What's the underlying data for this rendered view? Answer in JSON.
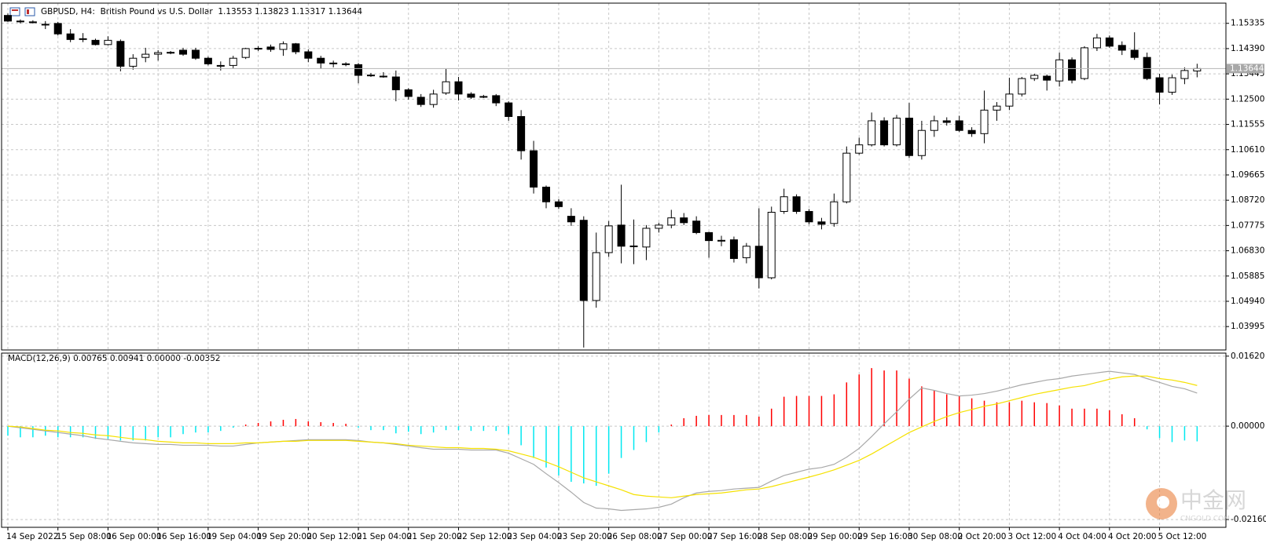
{
  "chart_data": [
    {
      "type": "candlestick",
      "title": "GBPUSD, H4:  British Pound vs U.S. Dollar  1.13553 1.13823 1.13317 1.13644",
      "categories": [
        "14 Sep 2022",
        null,
        null,
        null,
        "15 Sep 08:00",
        null,
        null,
        null,
        "16 Sep 00:00",
        null,
        null,
        null,
        "16 Sep 16:00",
        null,
        null,
        null,
        "19 Sep 04:00",
        null,
        null,
        null,
        "19 Sep 20:00",
        null,
        null,
        null,
        "20 Sep 12:00",
        null,
        null,
        null,
        "21 Sep 04:00",
        null,
        null,
        null,
        "21 Sep 20:00",
        null,
        null,
        null,
        "22 Sep 12:00",
        null,
        null,
        null,
        "23 Sep 04:00",
        null,
        null,
        null,
        "23 Sep 20:00",
        null,
        null,
        null,
        "26 Sep 08:00",
        null,
        null,
        null,
        "27 Sep 00:00",
        null,
        null,
        null,
        "27 Sep 16:00",
        null,
        null,
        null,
        "28 Sep 08:00",
        null,
        null,
        null,
        "29 Sep 00:00",
        null,
        null,
        null,
        "29 Sep 16:00",
        null,
        null,
        null,
        "30 Sep 08:00",
        null,
        null,
        null,
        "2 Oct 20:00",
        null,
        null,
        null,
        "3 Oct 12:00",
        null,
        null,
        null,
        "4 Oct 04:00",
        null,
        null,
        null,
        "4 Oct 20:00",
        null,
        null,
        null,
        "5 Oct 12:00",
        null,
        null,
        null
      ],
      "open": [
        1.1563,
        1.1542,
        1.1539,
        1.153,
        1.1533,
        1.1494,
        1.1476,
        1.147,
        1.1454,
        1.1466,
        1.1373,
        1.1406,
        1.1418,
        1.1424,
        1.1433,
        1.1433,
        1.1403,
        1.1376,
        1.1376,
        1.1406,
        1.1439,
        1.1445,
        1.1436,
        1.1457,
        1.1427,
        1.1403,
        1.1385,
        1.1382,
        1.1379,
        1.1339,
        1.1336,
        1.1333,
        1.1285,
        1.1257,
        1.123,
        1.1273,
        1.1315,
        1.1269,
        1.126,
        1.1263,
        1.1236,
        1.1185,
        1.1057,
        1.0921,
        1.0866,
        1.0812,
        1.0797,
        1.0497,
        1.0676,
        1.0779,
        1.07,
        1.0697,
        1.0767,
        1.0779,
        1.0806,
        1.0794,
        1.0751,
        1.0721,
        1.0724,
        1.0657,
        1.07,
        1.0582,
        1.083,
        1.0885,
        1.083,
        1.0791,
        1.0785,
        1.0866,
        1.1048,
        1.1079,
        1.1169,
        1.1079,
        1.1179,
        1.1039,
        1.1133,
        1.1169,
        1.1169,
        1.1133,
        1.1121,
        1.1209,
        1.1224,
        1.1269,
        1.1327,
        1.1336,
        1.1318,
        1.1397,
        1.1327,
        1.1442,
        1.1479,
        1.1451,
        1.1433,
        1.1406,
        1.133,
        1.1276,
        1.1327,
        1.13553
      ],
      "high": [
        1.157,
        1.1548,
        1.1545,
        1.1542,
        1.1539,
        1.1512,
        1.1497,
        1.1476,
        1.1485,
        1.1473,
        1.1418,
        1.1442,
        1.1433,
        1.143,
        1.1442,
        1.1442,
        1.1409,
        1.1391,
        1.1412,
        1.1442,
        1.1448,
        1.1454,
        1.1466,
        1.146,
        1.1436,
        1.1412,
        1.1394,
        1.1388,
        1.1385,
        1.1348,
        1.1351,
        1.1357,
        1.1291,
        1.1269,
        1.1285,
        1.1363,
        1.1333,
        1.1276,
        1.1266,
        1.1269,
        1.1242,
        1.1209,
        1.1094,
        1.0927,
        1.0876,
        1.0842,
        1.0812,
        1.0751,
        1.0794,
        1.093,
        1.08,
        1.0779,
        1.0788,
        1.0836,
        1.0824,
        1.0812,
        1.0754,
        1.0739,
        1.0736,
        1.0712,
        1.0842,
        1.0848,
        1.0915,
        1.0894,
        1.0839,
        1.0806,
        1.0897,
        1.1073,
        1.1106,
        1.12,
        1.1182,
        1.1191,
        1.1236,
        1.1169,
        1.1188,
        1.1182,
        1.1188,
        1.1145,
        1.1282,
        1.1239,
        1.133,
        1.1333,
        1.1345,
        1.1342,
        1.1424,
        1.1406,
        1.1448,
        1.1494,
        1.1488,
        1.1466,
        1.15,
        1.1424,
        1.1345,
        1.1342,
        1.1369,
        1.13823
      ],
      "low": [
        1.1539,
        1.1533,
        1.1533,
        1.1512,
        1.1488,
        1.1463,
        1.1463,
        1.1451,
        1.1451,
        1.1354,
        1.136,
        1.1388,
        1.1394,
        1.1418,
        1.1412,
        1.1397,
        1.1376,
        1.1357,
        1.1366,
        1.14,
        1.143,
        1.1427,
        1.1412,
        1.1418,
        1.1388,
        1.1363,
        1.1369,
        1.1373,
        1.1309,
        1.1333,
        1.133,
        1.1242,
        1.1248,
        1.1221,
        1.1218,
        1.1266,
        1.1245,
        1.1251,
        1.1254,
        1.1224,
        1.1169,
        1.1024,
        1.0897,
        1.0842,
        1.0839,
        1.0776,
        1.0321,
        1.047,
        1.066,
        1.0636,
        1.0633,
        1.0648,
        1.0751,
        1.0767,
        1.0779,
        1.0745,
        1.0657,
        1.07,
        1.0639,
        1.0636,
        1.0542,
        1.0576,
        1.0821,
        1.0821,
        1.0782,
        1.0763,
        1.0773,
        1.086,
        1.1042,
        1.1073,
        1.1073,
        1.1073,
        1.103,
        1.1024,
        1.1109,
        1.1151,
        1.1127,
        1.1109,
        1.1085,
        1.1169,
        1.1209,
        1.126,
        1.1318,
        1.1282,
        1.1297,
        1.1309,
        1.1321,
        1.143,
        1.1442,
        1.1415,
        1.1397,
        1.1321,
        1.123,
        1.1266,
        1.1306,
        1.13317
      ],
      "close": [
        1.1542,
        1.1539,
        1.1536,
        1.1529,
        1.1494,
        1.1473,
        1.1475,
        1.1454,
        1.147,
        1.1373,
        1.1403,
        1.1418,
        1.1424,
        1.1425,
        1.1418,
        1.1403,
        1.1382,
        1.1375,
        1.1403,
        1.1439,
        1.144,
        1.1436,
        1.1457,
        1.1427,
        1.1403,
        1.1385,
        1.1384,
        1.1381,
        1.1339,
        1.134,
        1.1335,
        1.1285,
        1.126,
        1.123,
        1.1269,
        1.1315,
        1.1269,
        1.1257,
        1.1259,
        1.1236,
        1.1185,
        1.1057,
        1.0921,
        1.0866,
        1.0848,
        1.0791,
        1.0497,
        1.0676,
        1.0776,
        1.07,
        1.0701,
        1.0767,
        1.0779,
        1.0806,
        1.0788,
        1.0751,
        1.0721,
        1.0722,
        1.0654,
        1.07,
        1.0582,
        1.0827,
        1.0885,
        1.083,
        1.0791,
        1.0782,
        1.0866,
        1.1048,
        1.1079,
        1.1169,
        1.1079,
        1.1179,
        1.1039,
        1.1133,
        1.1169,
        1.1163,
        1.1133,
        1.1121,
        1.1209,
        1.1224,
        1.1269,
        1.1327,
        1.1339,
        1.1321,
        1.1397,
        1.1321,
        1.1442,
        1.1479,
        1.1448,
        1.1433,
        1.1406,
        1.1327,
        1.1276,
        1.133,
        1.1357,
        1.13644
      ],
      "up_color": "#ffffff",
      "down_color": "#000000",
      "current_price": 1.13644,
      "ylim": [
        1.0312,
        1.1609
      ],
      "yticks": [
        1.15335,
        {
          "value": 1.1439,
          "label": "1.14390"
        },
        1.13445,
        {
          "value": 1.125,
          "label": "1.12500"
        },
        1.11555,
        {
          "value": 1.1061,
          "label": "1.10610"
        },
        1.09665,
        {
          "value": 1.0872,
          "label": "1.08720"
        },
        1.07775,
        {
          "value": 1.0683,
          "label": "1.06830"
        },
        1.05885,
        {
          "value": 1.0494,
          "label": "1.04940"
        },
        1.03995
      ],
      "grid": true
    },
    {
      "type": "indicator",
      "title": "MACD(12,26,9) 0.00765 0.00941 0.00000 -0.00352",
      "series": [
        {
          "style": "histogram",
          "color": "#ff0000",
          "negative_color": "#00e8f0",
          "values": [
            -0.00221,
            -0.00258,
            -0.00258,
            -0.00221,
            -0.00258,
            -0.00258,
            -0.00258,
            -0.00294,
            -0.00294,
            -0.00331,
            -0.00331,
            -0.00331,
            -0.00258,
            -0.00258,
            -0.00184,
            -0.00147,
            -0.00147,
            -0.0011,
            -0.00037,
            0.00037,
            0.00074,
            0.0011,
            0.00147,
            0.00166,
            0.0011,
            0.00092,
            0.00074,
            0.00055,
            -0.00037,
            -0.00092,
            -0.00092,
            -0.00166,
            -0.00129,
            -0.00184,
            -0.00147,
            -0.00092,
            -0.00092,
            -0.0011,
            -0.0011,
            -0.0011,
            -0.00184,
            -0.00442,
            -0.00736,
            -0.00957,
            -0.01141,
            -0.01288,
            -0.01325,
            -0.0138,
            -0.011,
            -0.00736,
            -0.00552,
            -0.00368,
            -0.00147,
            0.00037,
            0.00184,
            0.00239,
            0.00258,
            0.00258,
            0.00258,
            0.00258,
            0.00221,
            0.00405,
            0.00681,
            0.00699,
            0.00699,
            0.00699,
            0.00736,
            0.01012,
            0.01196,
            0.01343,
            0.01288,
            0.01288,
            0.011,
            0.0092,
            0.00828,
            0.00736,
            0.00699,
            0.00644,
            0.00589,
            0.00552,
            0.00552,
            0.00589,
            0.00552,
            0.00534,
            0.00478,
            0.00405,
            0.00405,
            0.00405,
            0.00368,
            0.00276,
            0.00184,
            -0.00074,
            -0.00276,
            -0.00368,
            -0.00331,
            -0.00352
          ]
        },
        {
          "style": "line",
          "color": "#a8a8a8",
          "values": [
            0,
            -0.00037,
            -0.00074,
            -0.0011,
            -0.00147,
            -0.00184,
            -0.00221,
            -0.00276,
            -0.00313,
            -0.0035,
            -0.00386,
            -0.00405,
            -0.00423,
            -0.00423,
            -0.00442,
            -0.00442,
            -0.00442,
            -0.0046,
            -0.0046,
            -0.00423,
            -0.00386,
            -0.00368,
            -0.0035,
            -0.00331,
            -0.00313,
            -0.00313,
            -0.00313,
            -0.00313,
            -0.00331,
            -0.00368,
            -0.00386,
            -0.00423,
            -0.0046,
            -0.00497,
            -0.00534,
            -0.00534,
            -0.00534,
            -0.00552,
            -0.00552,
            -0.00552,
            -0.00626,
            -0.00754,
            -0.00883,
            -0.011,
            -0.01306,
            -0.01527,
            -0.01766,
            -0.01895,
            -0.01914,
            -0.0195,
            -0.01932,
            -0.01914,
            -0.01877,
            -0.01803,
            -0.01656,
            -0.01546,
            -0.01509,
            -0.0149,
            -0.01454,
            -0.01435,
            -0.01417,
            -0.0127,
            -0.01141,
            -0.01067,
            -0.00994,
            -0.00957,
            -0.00883,
            -0.00718,
            -0.00515,
            -0.00239,
            0.00055,
            0.00331,
            0.00626,
            0.00883,
            0.00828,
            0.00754,
            0.00699,
            0.00718,
            0.00754,
            0.0081,
            0.00883,
            0.00957,
            0.01012,
            0.01067,
            0.011,
            0.01159,
            0.01196,
            0.01233,
            0.0127,
            0.01233,
            0.01196,
            0.011,
            0.01012,
            0.0092,
            0.00865,
            0.00765
          ]
        },
        {
          "style": "line",
          "color": "#f5e100",
          "values": [
            0,
            -0.00018,
            -0.00055,
            -0.00092,
            -0.0011,
            -0.00147,
            -0.00166,
            -0.00202,
            -0.00221,
            -0.00258,
            -0.00294,
            -0.00313,
            -0.0035,
            -0.00368,
            -0.00386,
            -0.00386,
            -0.00405,
            -0.00405,
            -0.00405,
            -0.00386,
            -0.00386,
            -0.00368,
            -0.0035,
            -0.0035,
            -0.00331,
            -0.00331,
            -0.00331,
            -0.00331,
            -0.0035,
            -0.00368,
            -0.00386,
            -0.00405,
            -0.00442,
            -0.0046,
            -0.00478,
            -0.00497,
            -0.00497,
            -0.00515,
            -0.00515,
            -0.00534,
            -0.0057,
            -0.00644,
            -0.00718,
            -0.00828,
            -0.00938,
            -0.01067,
            -0.01196,
            -0.01288,
            -0.0138,
            -0.01472,
            -0.01582,
            -0.01619,
            -0.01638,
            -0.01656,
            -0.01619,
            -0.01582,
            -0.01564,
            -0.01546,
            -0.01509,
            -0.01472,
            -0.01454,
            -0.01398,
            -0.01325,
            -0.01251,
            -0.01178,
            -0.011,
            -0.01012,
            -0.00902,
            -0.00791,
            -0.00644,
            -0.00478,
            -0.00313,
            -0.00147,
            -0.00018,
            0.0011,
            0.00221,
            0.00313,
            0.00386,
            0.0046,
            0.00515,
            0.00589,
            0.00662,
            0.00736,
            0.00791,
            0.00846,
            0.00902,
            0.00938,
            0.01012,
            0.01086,
            0.01141,
            0.01159,
            0.01159,
            0.011,
            0.01067,
            0.01012,
            0.00941
          ]
        }
      ],
      "ylim": [
        -0.0234,
        0.0169
      ],
      "yticks": [
        {
          "value": 0.0162,
          "label": "0.01620"
        },
        {
          "value": 0,
          "label": "0.00000"
        },
        {
          "value": -0.0216,
          "label": "-0.02160"
        }
      ],
      "grid": true
    }
  ],
  "watermark": {
    "name": "中金网",
    "site": "CNGOLD.COM"
  }
}
